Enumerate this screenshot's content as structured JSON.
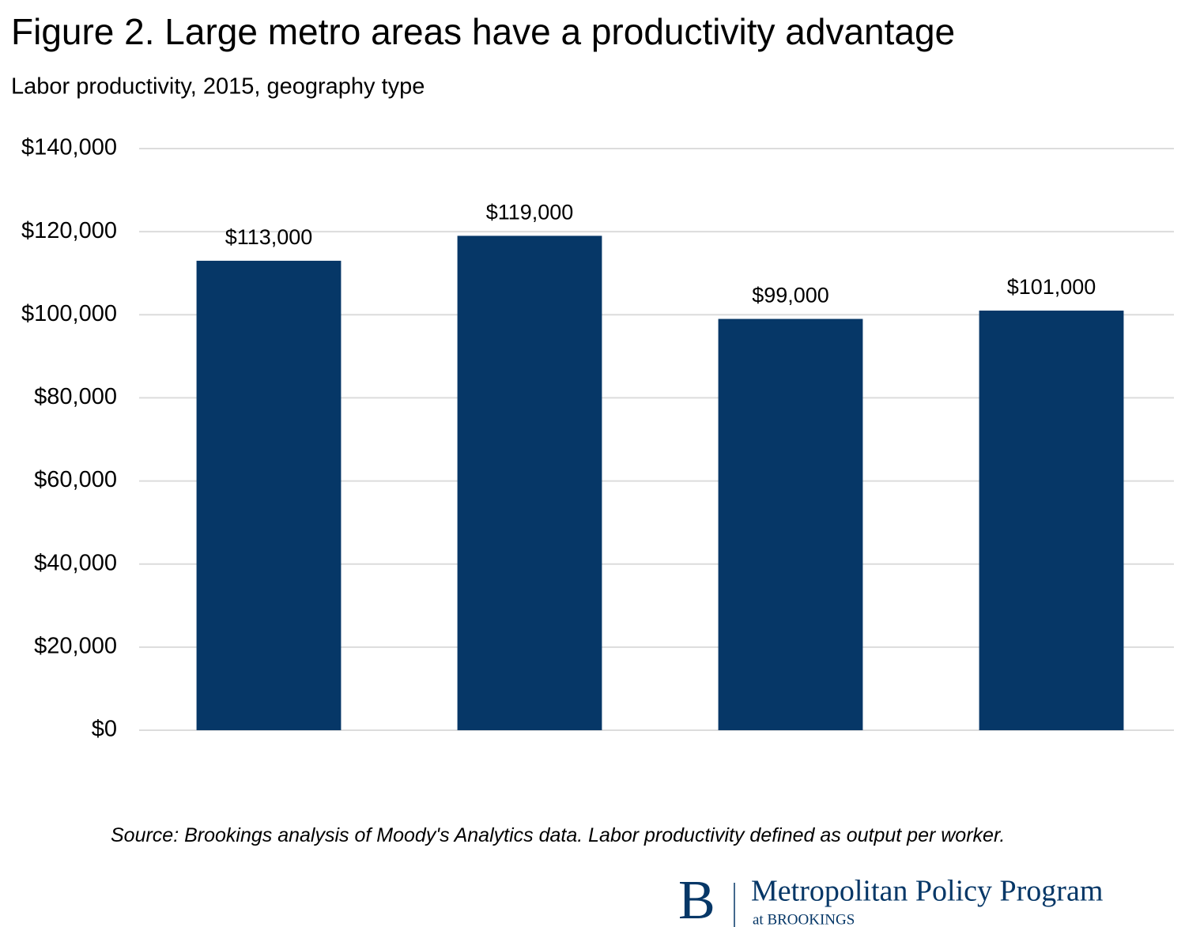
{
  "chart_data": {
    "type": "bar",
    "title": "Figure 2. Large metro areas have a productivity advantage",
    "subtitle": "Labor productivity, 2015, geography type",
    "categories": [
      null,
      null,
      null,
      null
    ],
    "values": [
      113000,
      119000,
      99000,
      101000
    ],
    "value_labels": [
      "$113,000",
      "$119,000",
      "$99,000",
      "$101,000"
    ],
    "color": "#063767",
    "ylim": [
      0,
      140000
    ],
    "yticks": [
      {
        "value": 0,
        "label": "$0"
      },
      {
        "value": 20000,
        "label": "$20,000"
      },
      {
        "value": 40000,
        "label": "$40,000"
      },
      {
        "value": 60000,
        "label": "$60,000"
      },
      {
        "value": 80000,
        "label": "$80,000"
      },
      {
        "value": 100000,
        "label": "$100,000"
      },
      {
        "value": 120000,
        "label": "$120,000"
      },
      {
        "value": 140000,
        "label": "$140,000"
      }
    ],
    "grid": true,
    "source": "Source: Brookings analysis of Moody's Analytics data. Labor productivity defined as output per worker."
  },
  "logo": {
    "mark": "B",
    "name": "Metropolitan Policy Program",
    "sub": "at BROOKINGS"
  }
}
